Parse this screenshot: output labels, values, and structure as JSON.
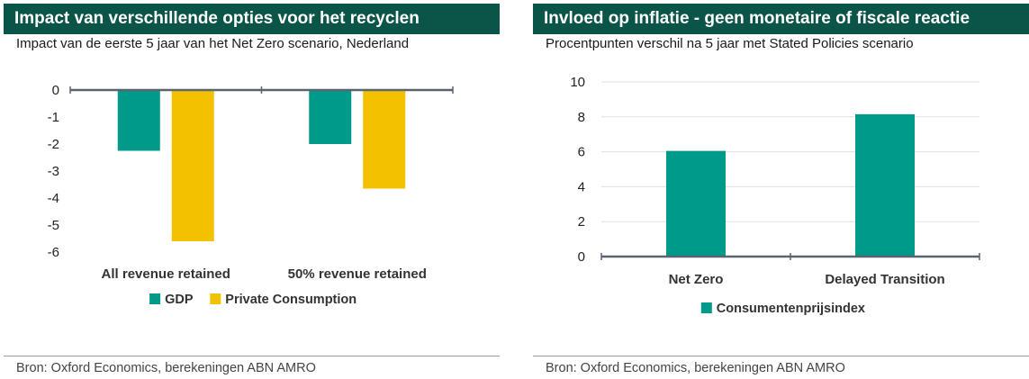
{
  "panels": [
    {
      "title": "Impact van verschillende opties voor het recyclen",
      "subtitle": "Impact van de eerste 5 jaar van het Net Zero scenario, Nederland",
      "source": "Bron: Oxford Economics, berekeningen ABN AMRO"
    },
    {
      "title": "Invloed op inflatie - geen monetaire of fiscale reactie",
      "subtitle": "Procentpunten verschil na 5 jaar met Stated Policies scenario",
      "source": "Bron: Oxford Economics, berekeningen ABN AMRO"
    }
  ],
  "colors": {
    "header_bg": "#0a5547",
    "teal": "#009a8a",
    "gold": "#f2c200",
    "axis": "#5a6470",
    "grid": "#e0e0e0"
  },
  "chart_data": [
    {
      "type": "bar",
      "categories": [
        "All revenue retained",
        "50% revenue retained"
      ],
      "series": [
        {
          "name": "GDP",
          "values": [
            -2.25,
            -2.0
          ],
          "color": "#009a8a"
        },
        {
          "name": "Private Consumption",
          "values": [
            -5.6,
            -3.65
          ],
          "color": "#f2c200"
        }
      ],
      "ylim": [
        -6,
        0
      ],
      "yticks": [
        0,
        -1,
        -2,
        -3,
        -4,
        -5,
        -6
      ],
      "grid": false,
      "legend_position": "bottom"
    },
    {
      "type": "bar",
      "categories": [
        "Net Zero",
        "Delayed Transition"
      ],
      "series": [
        {
          "name": "Consumentenprijsindex",
          "values": [
            6.05,
            8.15
          ],
          "color": "#009a8a"
        }
      ],
      "ylim": [
        0,
        10
      ],
      "yticks": [
        0,
        2,
        4,
        6,
        8,
        10
      ],
      "grid": true,
      "legend_position": "bottom"
    }
  ]
}
